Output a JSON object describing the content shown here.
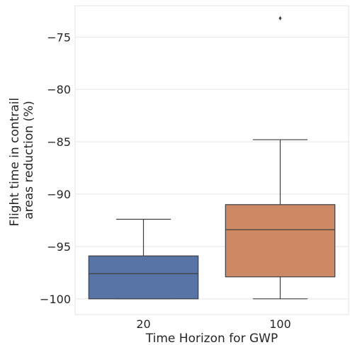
{
  "chart_data": {
    "type": "box",
    "xlabel": "Time Horizon for GWP",
    "ylabel_lines": [
      "Flight time in contrail",
      "areas reduction (%)"
    ],
    "categories": [
      "20",
      "100"
    ],
    "ylim": [
      -101.5,
      -72.0
    ],
    "yticks": [
      -75,
      -80,
      -85,
      -90,
      -95,
      -100
    ],
    "ytick_labels": [
      "−75",
      "−80",
      "−85",
      "−90",
      "−95",
      "−100"
    ],
    "grid": true,
    "boxes": [
      {
        "category": "20",
        "whisker_low": -100.0,
        "q1": -100.0,
        "median": -97.6,
        "q3": -95.9,
        "whisker_high": -92.4,
        "outliers": [],
        "color": "#5874a6"
      },
      {
        "category": "100",
        "whisker_low": -100.0,
        "q1": -97.9,
        "median": -93.4,
        "q3": -91.0,
        "whisker_high": -84.8,
        "outliers": [
          -73.2
        ],
        "color": "#cc8963"
      }
    ]
  }
}
